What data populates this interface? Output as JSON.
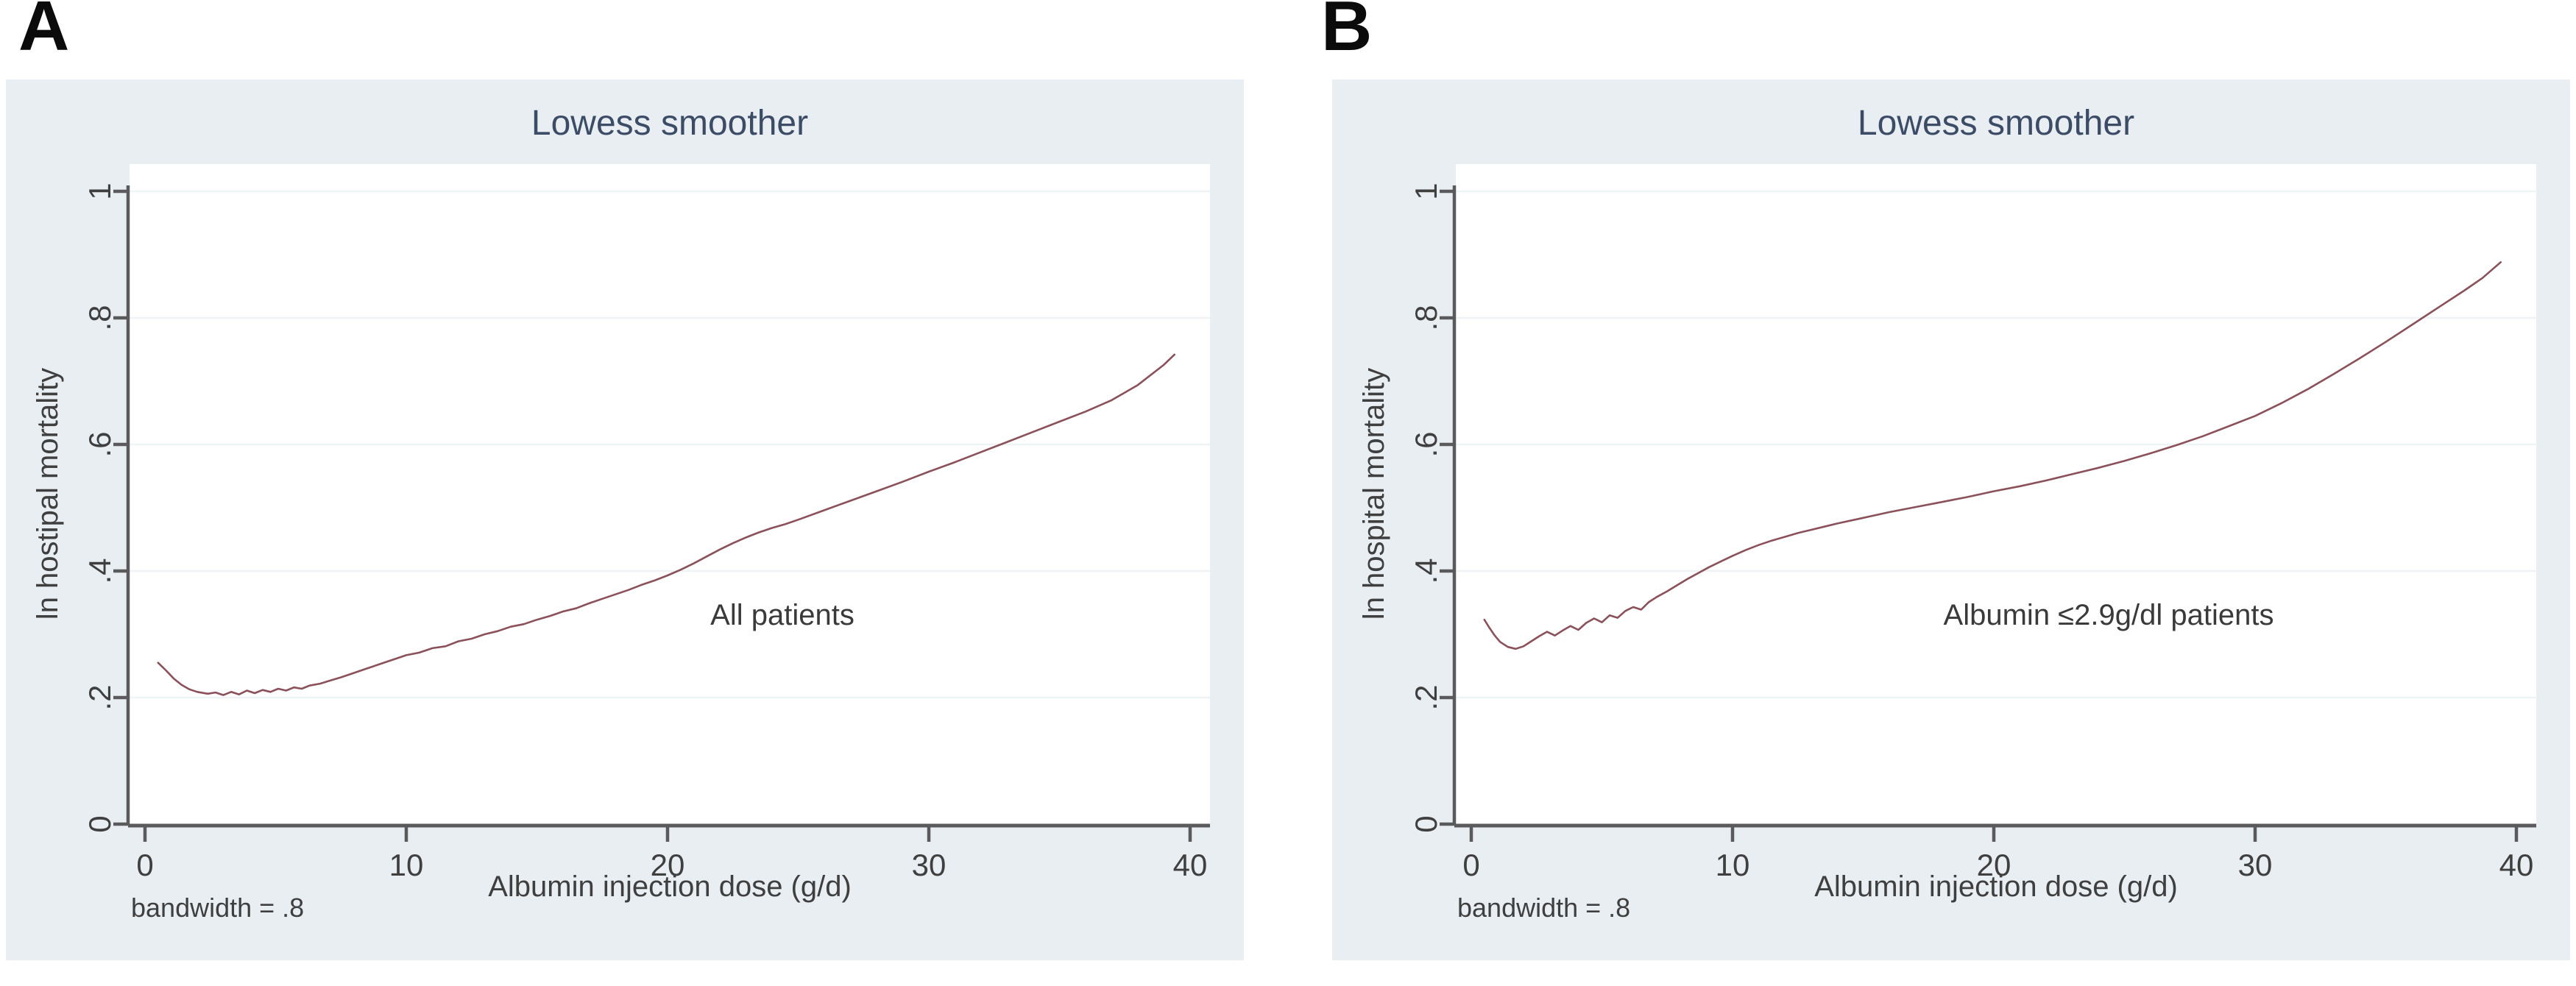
{
  "panel_letters": [
    "A",
    "B"
  ],
  "colors": {
    "page_bg": "#ffffff",
    "panel_bg": "#e9eef2",
    "plot_bg": "#ffffff",
    "gridline": "#f0f3f5",
    "axis": "#5a5a5c",
    "tick_text": "#3f3f3f",
    "title_text": "#3c4c66",
    "curve": "#8a515b",
    "letter_text": "#0b0b0b"
  },
  "chart_data": [
    {
      "type": "line",
      "title": "Lowess smoother",
      "xlabel": "Albumin injection dose (g/d)",
      "ylabel": "ln hostipal mortality",
      "annotation": "All patients",
      "footnote": "bandwidth = .8",
      "xlim": [
        0,
        40
      ],
      "ylim": [
        0,
        1
      ],
      "x_ticks": [
        0,
        10,
        20,
        30,
        40
      ],
      "x_tick_labels": [
        "0",
        "10",
        "20",
        "30",
        "40"
      ],
      "y_ticks": [
        0,
        0.2,
        0.4,
        0.6,
        0.8,
        1
      ],
      "y_tick_labels": [
        "0",
        ".2",
        ".4",
        ".6",
        ".8",
        "1"
      ],
      "grid": "horizontal",
      "legend": "none",
      "series": [
        {
          "name": "lowess fit - all patients",
          "color": "#8a515b",
          "points": [
            [
              0.5,
              0.255
            ],
            [
              0.8,
              0.243
            ],
            [
              1.1,
              0.23
            ],
            [
              1.4,
              0.22
            ],
            [
              1.7,
              0.213
            ],
            [
              2.0,
              0.209
            ],
            [
              2.4,
              0.206
            ],
            [
              2.7,
              0.208
            ],
            [
              3.0,
              0.204
            ],
            [
              3.3,
              0.209
            ],
            [
              3.6,
              0.205
            ],
            [
              3.9,
              0.211
            ],
            [
              4.2,
              0.207
            ],
            [
              4.5,
              0.212
            ],
            [
              4.8,
              0.209
            ],
            [
              5.1,
              0.214
            ],
            [
              5.4,
              0.211
            ],
            [
              5.7,
              0.216
            ],
            [
              6.0,
              0.214
            ],
            [
              6.3,
              0.219
            ],
            [
              6.7,
              0.222
            ],
            [
              7.1,
              0.227
            ],
            [
              7.5,
              0.232
            ],
            [
              8.0,
              0.239
            ],
            [
              8.5,
              0.246
            ],
            [
              9.0,
              0.253
            ],
            [
              9.5,
              0.26
            ],
            [
              10.0,
              0.267
            ],
            [
              10.5,
              0.271
            ],
            [
              11.0,
              0.278
            ],
            [
              11.5,
              0.281
            ],
            [
              12.0,
              0.289
            ],
            [
              12.5,
              0.293
            ],
            [
              13.0,
              0.3
            ],
            [
              13.5,
              0.305
            ],
            [
              14.0,
              0.312
            ],
            [
              14.5,
              0.316
            ],
            [
              15.0,
              0.323
            ],
            [
              15.5,
              0.329
            ],
            [
              16.0,
              0.336
            ],
            [
              16.5,
              0.341
            ],
            [
              17.0,
              0.349
            ],
            [
              17.5,
              0.356
            ],
            [
              18.0,
              0.363
            ],
            [
              18.5,
              0.37
            ],
            [
              19.0,
              0.378
            ],
            [
              19.5,
              0.385
            ],
            [
              20.0,
              0.393
            ],
            [
              20.5,
              0.402
            ],
            [
              21.0,
              0.412
            ],
            [
              21.5,
              0.423
            ],
            [
              22.0,
              0.434
            ],
            [
              22.5,
              0.444
            ],
            [
              23.0,
              0.453
            ],
            [
              23.5,
              0.461
            ],
            [
              24.0,
              0.468
            ],
            [
              24.5,
              0.474
            ],
            [
              25.0,
              0.481
            ],
            [
              26.0,
              0.496
            ],
            [
              27.0,
              0.511
            ],
            [
              28.0,
              0.526
            ],
            [
              29.0,
              0.541
            ],
            [
              30.0,
              0.557
            ],
            [
              31.0,
              0.572
            ],
            [
              32.0,
              0.588
            ],
            [
              33.0,
              0.604
            ],
            [
              34.0,
              0.62
            ],
            [
              35.0,
              0.636
            ],
            [
              36.0,
              0.652
            ],
            [
              37.0,
              0.67
            ],
            [
              38.0,
              0.694
            ],
            [
              39.0,
              0.726
            ],
            [
              39.4,
              0.742
            ]
          ]
        }
      ]
    },
    {
      "type": "line",
      "title": "Lowess smoother",
      "xlabel": "Albumin injection dose (g/d)",
      "ylabel": "ln hospital mortality",
      "annotation": "Albumin ≤2.9g/dl patients",
      "footnote": "bandwidth = .8",
      "xlim": [
        0,
        40
      ],
      "ylim": [
        0,
        1
      ],
      "x_ticks": [
        0,
        10,
        20,
        30,
        40
      ],
      "x_tick_labels": [
        "0",
        "10",
        "20",
        "30",
        "40"
      ],
      "y_ticks": [
        0,
        0.2,
        0.4,
        0.6,
        0.8,
        1
      ],
      "y_tick_labels": [
        "0",
        ".2",
        ".4",
        ".6",
        ".8",
        "1"
      ],
      "grid": "horizontal",
      "legend": "none",
      "series": [
        {
          "name": "lowess fit - albumin <=2.9 g/dl patients",
          "color": "#8a515b",
          "points": [
            [
              0.5,
              0.323
            ],
            [
              0.7,
              0.31
            ],
            [
              0.9,
              0.298
            ],
            [
              1.1,
              0.288
            ],
            [
              1.4,
              0.28
            ],
            [
              1.7,
              0.277
            ],
            [
              2.0,
              0.281
            ],
            [
              2.3,
              0.289
            ],
            [
              2.6,
              0.297
            ],
            [
              2.9,
              0.304
            ],
            [
              3.2,
              0.298
            ],
            [
              3.5,
              0.306
            ],
            [
              3.8,
              0.313
            ],
            [
              4.1,
              0.307
            ],
            [
              4.4,
              0.318
            ],
            [
              4.7,
              0.325
            ],
            [
              5.0,
              0.319
            ],
            [
              5.3,
              0.33
            ],
            [
              5.6,
              0.326
            ],
            [
              5.9,
              0.337
            ],
            [
              6.2,
              0.343
            ],
            [
              6.5,
              0.339
            ],
            [
              6.8,
              0.351
            ],
            [
              7.1,
              0.359
            ],
            [
              7.5,
              0.368
            ],
            [
              7.9,
              0.378
            ],
            [
              8.3,
              0.388
            ],
            [
              8.7,
              0.397
            ],
            [
              9.1,
              0.406
            ],
            [
              9.6,
              0.416
            ],
            [
              10.0,
              0.424
            ],
            [
              10.5,
              0.433
            ],
            [
              11.0,
              0.441
            ],
            [
              11.5,
              0.448
            ],
            [
              12.0,
              0.454
            ],
            [
              12.5,
              0.46
            ],
            [
              13.0,
              0.465
            ],
            [
              13.5,
              0.47
            ],
            [
              14.0,
              0.475
            ],
            [
              15.0,
              0.484
            ],
            [
              16.0,
              0.493
            ],
            [
              17.0,
              0.501
            ],
            [
              18.0,
              0.509
            ],
            [
              19.0,
              0.517
            ],
            [
              20.0,
              0.526
            ],
            [
              21.0,
              0.534
            ],
            [
              22.0,
              0.543
            ],
            [
              23.0,
              0.553
            ],
            [
              24.0,
              0.563
            ],
            [
              25.0,
              0.574
            ],
            [
              26.0,
              0.586
            ],
            [
              27.0,
              0.599
            ],
            [
              28.0,
              0.613
            ],
            [
              29.0,
              0.629
            ],
            [
              30.0,
              0.645
            ],
            [
              31.0,
              0.665
            ],
            [
              32.0,
              0.687
            ],
            [
              33.0,
              0.711
            ],
            [
              34.0,
              0.736
            ],
            [
              35.0,
              0.762
            ],
            [
              36.0,
              0.789
            ],
            [
              37.0,
              0.816
            ],
            [
              38.0,
              0.843
            ],
            [
              38.7,
              0.863
            ],
            [
              39.4,
              0.888
            ]
          ]
        }
      ]
    }
  ]
}
